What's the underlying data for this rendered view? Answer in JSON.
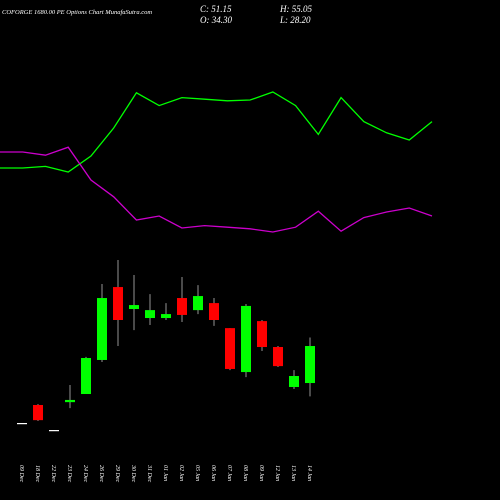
{
  "chart_data": [
    {
      "type": "line",
      "title": "COFORGE 1680.00 PE Options Chart MunafaSutra.com",
      "ohlc_labels": [
        "C: 51.15",
        "H: 55.05",
        "O: 34.30",
        "L: 28.20"
      ],
      "ylim": [
        0,
        100
      ],
      "series": [
        {
          "color": "#00ff00",
          "values": [
            45,
            45,
            46,
            42.5,
            52.5,
            70,
            92,
            84,
            89,
            88,
            87,
            87.5,
            92.5,
            84,
            66,
            89,
            74,
            67,
            62.5,
            74
          ]
        },
        {
          "color": "#cc00cc",
          "values": [
            55,
            55,
            53,
            58,
            37.5,
            27,
            12.5,
            15,
            7.5,
            9,
            8,
            7,
            5,
            8,
            18,
            5.5,
            14,
            17.5,
            20,
            15
          ]
        }
      ]
    },
    {
      "type": "candlestick",
      "up_color": "#00ff00",
      "down_color": "#ff0000",
      "flat_color": "#ffffff",
      "ylim": [
        10,
        90
      ],
      "categories": [
        "09 Dec",
        "18 Dec",
        "22 Dec",
        "23 Dec",
        "24 Dec",
        "26 Dec",
        "29 Dec",
        "30 Dec",
        "31 Dec",
        "01 Jan",
        "02 Jan",
        "05 Jan",
        "06 Jan",
        "07 Jan",
        "08 Jan",
        "09 Jan",
        "12 Jan",
        "13 Jan",
        "14 Jan"
      ],
      "open": [
        16.1,
        24.3,
        12.9,
        25.6,
        29.3,
        44.8,
        78.0,
        68.0,
        63.9,
        63.9,
        73.0,
        67.5,
        70.7,
        59.3,
        39.3,
        62.5,
        50.7,
        32.5,
        34.3
      ],
      "high": [
        16.1,
        24.7,
        12.9,
        33.4,
        46.2,
        79.4,
        90.3,
        83.5,
        74.8,
        70.7,
        82.6,
        78.9,
        73.0,
        59.3,
        70.3,
        63.0,
        51.15,
        40.2,
        55.05
      ],
      "low": [
        16.1,
        17.0,
        12.9,
        22.9,
        29.3,
        43.9,
        51.15,
        58.4,
        60.7,
        63.0,
        62.1,
        65.7,
        60.3,
        40.2,
        37.0,
        48.9,
        41.6,
        31.6,
        28.2
      ],
      "close": [
        16.1,
        17.4,
        12.9,
        26.6,
        45.7,
        73.0,
        63.0,
        69.8,
        67.5,
        65.7,
        65.3,
        73.9,
        63.0,
        40.7,
        69.4,
        50.7,
        42.0,
        37.5,
        51.15
      ]
    }
  ]
}
